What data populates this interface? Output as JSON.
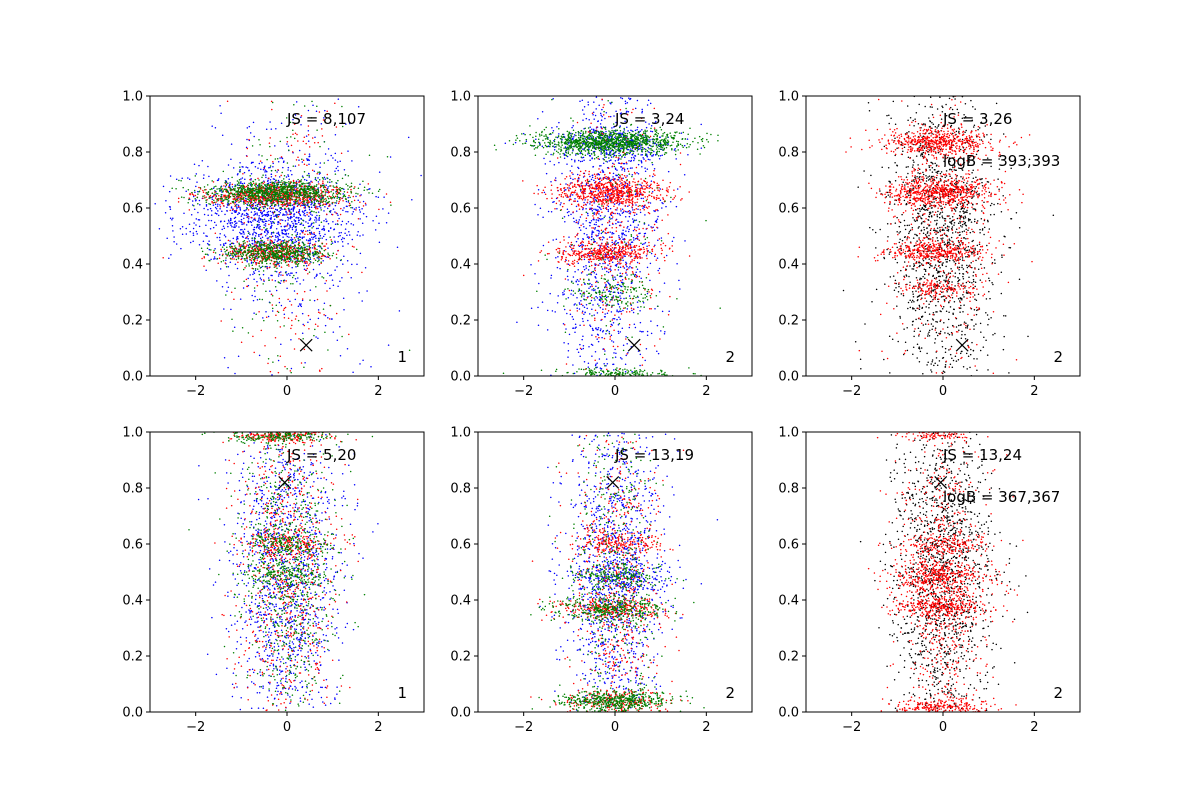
{
  "figure": {
    "rows": 2,
    "cols": 3,
    "point_colors": {
      "blue": "#0000ff",
      "red": "#ff0000",
      "green": "#008000",
      "black": "#000000"
    },
    "marker_color": "#000000"
  },
  "chart_data": [
    {
      "type": "scatter",
      "title": "",
      "xlabel": "",
      "ylabel": "",
      "xlim": [
        -3,
        3
      ],
      "ylim": [
        0,
        1
      ],
      "xticks": [
        -2,
        0,
        2
      ],
      "yticks": [
        0.0,
        0.2,
        0.4,
        0.6,
        0.8,
        1.0
      ],
      "annotations": {
        "js": "JS = 8,107",
        "logb": "",
        "panel_label": "1"
      },
      "marker": {
        "symbol": "x",
        "x": 0.42,
        "y": 0.11
      },
      "series": [
        {
          "name": "blue",
          "color": "#0000ff",
          "clusters": [
            {
              "cx": -0.3,
              "cy": 0.57,
              "sx": 0.95,
              "sy": 0.09,
              "n": 1200
            },
            {
              "cx": 0.0,
              "cy": 0.5,
              "sx": 0.85,
              "sy": 0.3,
              "n": 420
            }
          ]
        },
        {
          "name": "red",
          "color": "#ff0000",
          "clusters": [
            {
              "cx": -0.2,
              "cy": 0.645,
              "sx": 0.8,
              "sy": 0.022,
              "n": 700
            },
            {
              "cx": -0.3,
              "cy": 0.44,
              "sx": 0.6,
              "sy": 0.02,
              "n": 400
            },
            {
              "cx": 0.0,
              "cy": 0.5,
              "sx": 0.7,
              "sy": 0.3,
              "n": 260
            }
          ]
        },
        {
          "name": "green",
          "color": "#008000",
          "clusters": [
            {
              "cx": -0.2,
              "cy": 0.655,
              "sx": 0.8,
              "sy": 0.022,
              "n": 950
            },
            {
              "cx": -0.3,
              "cy": 0.44,
              "sx": 0.6,
              "sy": 0.02,
              "n": 550
            },
            {
              "cx": 0.0,
              "cy": 0.5,
              "sx": 0.7,
              "sy": 0.3,
              "n": 220
            }
          ]
        }
      ]
    },
    {
      "type": "scatter",
      "title": "",
      "xlabel": "",
      "ylabel": "",
      "xlim": [
        -3,
        3
      ],
      "ylim": [
        0,
        1
      ],
      "xticks": [
        -2,
        0,
        2
      ],
      "yticks": [
        0.0,
        0.2,
        0.4,
        0.6,
        0.8,
        1.0
      ],
      "annotations": {
        "js": "JS = 3,24",
        "logb": "",
        "panel_label": "2"
      },
      "marker": {
        "symbol": "x",
        "x": 0.42,
        "y": 0.11
      },
      "series": [
        {
          "name": "blue",
          "color": "#0000ff",
          "clusters": [
            {
              "cx": -0.2,
              "cy": 0.55,
              "sx": 0.6,
              "sy": 0.3,
              "n": 1300
            },
            {
              "cx": -0.1,
              "cy": 0.83,
              "sx": 0.75,
              "sy": 0.03,
              "n": 300
            }
          ]
        },
        {
          "name": "red",
          "color": "#ff0000",
          "clusters": [
            {
              "cx": -0.1,
              "cy": 0.655,
              "sx": 0.6,
              "sy": 0.03,
              "n": 650
            },
            {
              "cx": -0.2,
              "cy": 0.44,
              "sx": 0.55,
              "sy": 0.02,
              "n": 400
            },
            {
              "cx": 0.0,
              "cy": 0.5,
              "sx": 0.55,
              "sy": 0.3,
              "n": 380
            }
          ]
        },
        {
          "name": "green",
          "color": "#008000",
          "clusters": [
            {
              "cx": -0.1,
              "cy": 0.835,
              "sx": 0.8,
              "sy": 0.022,
              "n": 1100
            },
            {
              "cx": 0.0,
              "cy": 0.01,
              "sx": 0.7,
              "sy": 0.01,
              "n": 180
            },
            {
              "cx": -0.1,
              "cy": 0.3,
              "sx": 0.5,
              "sy": 0.03,
              "n": 150
            },
            {
              "cx": 0.0,
              "cy": 0.5,
              "sx": 0.55,
              "sy": 0.3,
              "n": 160
            }
          ]
        }
      ]
    },
    {
      "type": "scatter",
      "title": "",
      "xlabel": "",
      "ylabel": "",
      "xlim": [
        -3,
        3
      ],
      "ylim": [
        0,
        1
      ],
      "xticks": [
        -2,
        0,
        2
      ],
      "yticks": [
        0.0,
        0.2,
        0.4,
        0.6,
        0.8,
        1.0
      ],
      "annotations": {
        "js": "JS = 3,26",
        "logb": "logB = 393,393",
        "panel_label": "2"
      },
      "marker": {
        "symbol": "x",
        "x": 0.42,
        "y": 0.11
      },
      "series": [
        {
          "name": "black",
          "color": "#000000",
          "clusters": [
            {
              "cx": 0.0,
              "cy": 0.5,
              "sx": 0.6,
              "sy": 0.28,
              "n": 1500
            }
          ]
        },
        {
          "name": "red",
          "color": "#ff0000",
          "clusters": [
            {
              "cx": -0.1,
              "cy": 0.835,
              "sx": 0.6,
              "sy": 0.025,
              "n": 550
            },
            {
              "cx": -0.1,
              "cy": 0.655,
              "sx": 0.6,
              "sy": 0.028,
              "n": 600
            },
            {
              "cx": -0.2,
              "cy": 0.445,
              "sx": 0.55,
              "sy": 0.022,
              "n": 380
            },
            {
              "cx": -0.1,
              "cy": 0.31,
              "sx": 0.45,
              "sy": 0.02,
              "n": 150
            },
            {
              "cx": 0.0,
              "cy": 0.5,
              "sx": 0.6,
              "sy": 0.3,
              "n": 350
            }
          ]
        }
      ]
    },
    {
      "type": "scatter",
      "title": "",
      "xlabel": "",
      "ylabel": "",
      "xlim": [
        -3,
        3
      ],
      "ylim": [
        0,
        1
      ],
      "xticks": [
        -2,
        0,
        2
      ],
      "yticks": [
        0.0,
        0.2,
        0.4,
        0.6,
        0.8,
        1.0
      ],
      "annotations": {
        "js": "JS = 5,20",
        "logb": "",
        "panel_label": "1"
      },
      "marker": {
        "symbol": "x",
        "x": -0.05,
        "y": 0.82
      },
      "series": [
        {
          "name": "blue",
          "color": "#0000ff",
          "clusters": [
            {
              "cx": 0.0,
              "cy": 0.5,
              "sx": 0.6,
              "sy": 0.3,
              "n": 1300
            }
          ]
        },
        {
          "name": "red",
          "color": "#ff0000",
          "clusters": [
            {
              "cx": 0.0,
              "cy": 0.5,
              "sx": 0.55,
              "sy": 0.3,
              "n": 750
            },
            {
              "cx": -0.1,
              "cy": 0.985,
              "sx": 0.6,
              "sy": 0.012,
              "n": 180
            },
            {
              "cx": 0.0,
              "cy": 0.6,
              "sx": 0.55,
              "sy": 0.02,
              "n": 160
            }
          ]
        },
        {
          "name": "green",
          "color": "#008000",
          "clusters": [
            {
              "cx": 0.0,
              "cy": 0.5,
              "sx": 0.55,
              "sy": 0.3,
              "n": 800
            },
            {
              "cx": -0.1,
              "cy": 0.985,
              "sx": 0.6,
              "sy": 0.012,
              "n": 200
            },
            {
              "cx": 0.0,
              "cy": 0.49,
              "sx": 0.5,
              "sy": 0.02,
              "n": 160
            },
            {
              "cx": 0.0,
              "cy": 0.6,
              "sx": 0.5,
              "sy": 0.02,
              "n": 140
            }
          ]
        }
      ]
    },
    {
      "type": "scatter",
      "title": "",
      "xlabel": "",
      "ylabel": "",
      "xlim": [
        -3,
        3
      ],
      "ylim": [
        0,
        1
      ],
      "xticks": [
        -2,
        0,
        2
      ],
      "yticks": [
        0.0,
        0.2,
        0.4,
        0.6,
        0.8,
        1.0
      ],
      "annotations": {
        "js": "JS = 13,19",
        "logb": "",
        "panel_label": "2"
      },
      "marker": {
        "symbol": "x",
        "x": -0.05,
        "y": 0.82
      },
      "series": [
        {
          "name": "blue",
          "color": "#0000ff",
          "clusters": [
            {
              "cx": 0.0,
              "cy": 0.5,
              "sx": 0.55,
              "sy": 0.3,
              "n": 1200
            },
            {
              "cx": 0.1,
              "cy": 0.48,
              "sx": 0.6,
              "sy": 0.03,
              "n": 200
            }
          ]
        },
        {
          "name": "red",
          "color": "#ff0000",
          "clusters": [
            {
              "cx": 0.0,
              "cy": 0.5,
              "sx": 0.5,
              "sy": 0.3,
              "n": 600
            },
            {
              "cx": -0.1,
              "cy": 0.37,
              "sx": 0.6,
              "sy": 0.02,
              "n": 250
            },
            {
              "cx": 0.0,
              "cy": 0.6,
              "sx": 0.5,
              "sy": 0.02,
              "n": 180
            },
            {
              "cx": 0.0,
              "cy": 0.04,
              "sx": 0.6,
              "sy": 0.02,
              "n": 220
            }
          ]
        },
        {
          "name": "green",
          "color": "#008000",
          "clusters": [
            {
              "cx": 0.0,
              "cy": 0.04,
              "sx": 0.6,
              "sy": 0.02,
              "n": 500
            },
            {
              "cx": -0.1,
              "cy": 0.37,
              "sx": 0.6,
              "sy": 0.02,
              "n": 330
            },
            {
              "cx": 0.0,
              "cy": 0.49,
              "sx": 0.5,
              "sy": 0.02,
              "n": 160
            },
            {
              "cx": 0.0,
              "cy": 0.5,
              "sx": 0.5,
              "sy": 0.3,
              "n": 450
            }
          ]
        }
      ]
    },
    {
      "type": "scatter",
      "title": "",
      "xlabel": "",
      "ylabel": "",
      "xlim": [
        -3,
        3
      ],
      "ylim": [
        0,
        1
      ],
      "xticks": [
        -2,
        0,
        2
      ],
      "yticks": [
        0.0,
        0.2,
        0.4,
        0.6,
        0.8,
        1.0
      ],
      "annotations": {
        "js": "JS = 13,24",
        "logb": "logB = 367,367",
        "panel_label": "2"
      },
      "marker": {
        "symbol": "x",
        "x": -0.05,
        "y": 0.82
      },
      "series": [
        {
          "name": "black",
          "color": "#000000",
          "clusters": [
            {
              "cx": 0.0,
              "cy": 0.5,
              "sx": 0.55,
              "sy": 0.28,
              "n": 1500
            }
          ]
        },
        {
          "name": "red",
          "color": "#ff0000",
          "clusters": [
            {
              "cx": 0.0,
              "cy": 0.5,
              "sx": 0.5,
              "sy": 0.3,
              "n": 700
            },
            {
              "cx": -0.1,
              "cy": 0.48,
              "sx": 0.55,
              "sy": 0.03,
              "n": 350
            },
            {
              "cx": -0.1,
              "cy": 0.375,
              "sx": 0.55,
              "sy": 0.02,
              "n": 300
            },
            {
              "cx": 0.0,
              "cy": 0.02,
              "sx": 0.55,
              "sy": 0.015,
              "n": 220
            },
            {
              "cx": 0.0,
              "cy": 0.6,
              "sx": 0.5,
              "sy": 0.02,
              "n": 150
            },
            {
              "cx": -0.1,
              "cy": 0.99,
              "sx": 0.4,
              "sy": 0.01,
              "n": 80
            }
          ]
        }
      ]
    }
  ]
}
